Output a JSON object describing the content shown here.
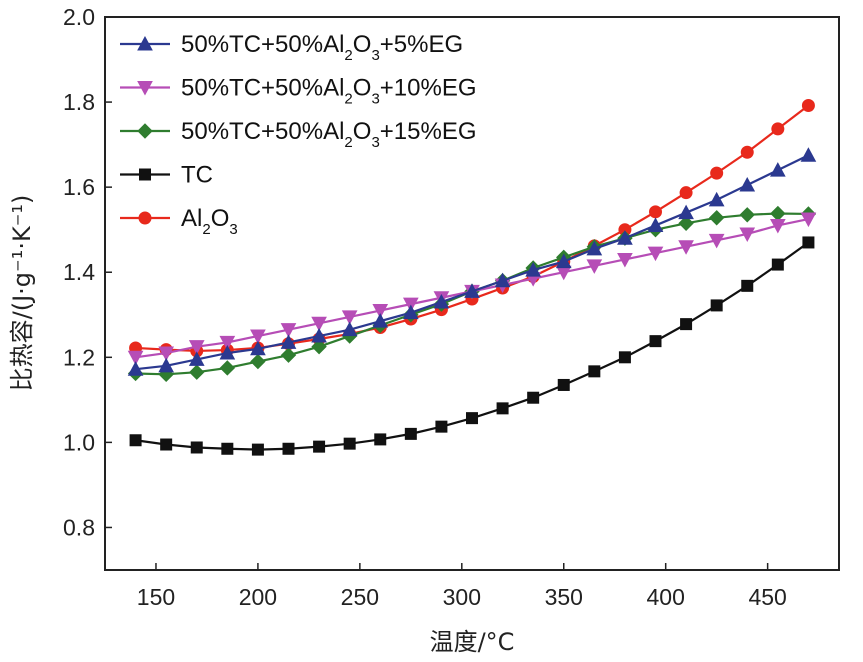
{
  "chart_data": {
    "type": "line",
    "title": "",
    "xlabel": "温度/°C",
    "ylabel": "比热容/(J·g⁻¹·K⁻¹)",
    "xlim": [
      125,
      485
    ],
    "ylim": [
      0.7,
      2.0
    ],
    "xticks": [
      150,
      200,
      250,
      300,
      350,
      400,
      450
    ],
    "yticks": [
      0.8,
      1.0,
      1.2,
      1.4,
      1.6,
      1.8,
      2.0
    ],
    "xtick_labels": [
      "150",
      "200",
      "250",
      "300",
      "350",
      "400",
      "450"
    ],
    "ytick_labels": [
      "0.8",
      "1.0",
      "1.2",
      "1.4",
      "1.6",
      "1.8",
      "2.0"
    ],
    "x": [
      140,
      155,
      170,
      185,
      200,
      215,
      230,
      245,
      260,
      275,
      290,
      305,
      320,
      335,
      350,
      365,
      380,
      395,
      410,
      425,
      440,
      455,
      470
    ],
    "legend_position": "top-left",
    "series": [
      {
        "name": "50%TC+50%Al2O3+5%EG",
        "legend": {
          "pre": "50%TC+50%Al",
          "sub1": "2",
          "mid": "O",
          "sub2": "3",
          "post": "+5%EG"
        },
        "color": "#2b3990",
        "marker": "triangle-up",
        "values": [
          1.172,
          1.18,
          1.195,
          1.21,
          1.22,
          1.235,
          1.25,
          1.265,
          1.285,
          1.305,
          1.33,
          1.355,
          1.38,
          1.405,
          1.425,
          1.455,
          1.48,
          1.51,
          1.54,
          1.57,
          1.605,
          1.64,
          1.675
        ]
      },
      {
        "name": "50%TC+50%Al2O3+10%EG",
        "legend": {
          "pre": "50%TC+50%Al",
          "sub1": "2",
          "mid": "O",
          "sub2": "3",
          "post": "+10%EG"
        },
        "color": "#b64db6",
        "marker": "triangle-down",
        "values": [
          1.2,
          1.21,
          1.225,
          1.235,
          1.25,
          1.265,
          1.28,
          1.295,
          1.31,
          1.325,
          1.34,
          1.355,
          1.37,
          1.385,
          1.4,
          1.415,
          1.43,
          1.445,
          1.46,
          1.475,
          1.49,
          1.51,
          1.525
        ]
      },
      {
        "name": "50%TC+50%Al2O3+15%EG",
        "legend": {
          "pre": "50%TC+50%Al",
          "sub1": "2",
          "mid": "O",
          "sub2": "3",
          "post": "+15%EG"
        },
        "color": "#2f7d2f",
        "marker": "diamond",
        "values": [
          1.162,
          1.16,
          1.165,
          1.175,
          1.19,
          1.205,
          1.225,
          1.25,
          1.275,
          1.3,
          1.325,
          1.355,
          1.38,
          1.41,
          1.435,
          1.46,
          1.48,
          1.5,
          1.515,
          1.528,
          1.535,
          1.538,
          1.537
        ]
      },
      {
        "name": "TC",
        "legend": {
          "pre": "TC",
          "sub1": "",
          "mid": "",
          "sub2": "",
          "post": ""
        },
        "color": "#111111",
        "marker": "square",
        "values": [
          1.005,
          0.995,
          0.988,
          0.985,
          0.983,
          0.985,
          0.99,
          0.997,
          1.007,
          1.02,
          1.037,
          1.057,
          1.08,
          1.105,
          1.135,
          1.167,
          1.2,
          1.238,
          1.278,
          1.322,
          1.368,
          1.418,
          1.47
        ]
      },
      {
        "name": "Al2O3",
        "legend": {
          "pre": "Al",
          "sub1": "2",
          "mid": "O",
          "sub2": "3",
          "post": ""
        },
        "color": "#e8291c",
        "marker": "circle",
        "values": [
          1.222,
          1.218,
          1.215,
          1.217,
          1.222,
          1.232,
          1.243,
          1.255,
          1.27,
          1.29,
          1.312,
          1.337,
          1.363,
          1.39,
          1.425,
          1.462,
          1.5,
          1.542,
          1.587,
          1.633,
          1.682,
          1.737,
          1.792
        ]
      }
    ]
  }
}
